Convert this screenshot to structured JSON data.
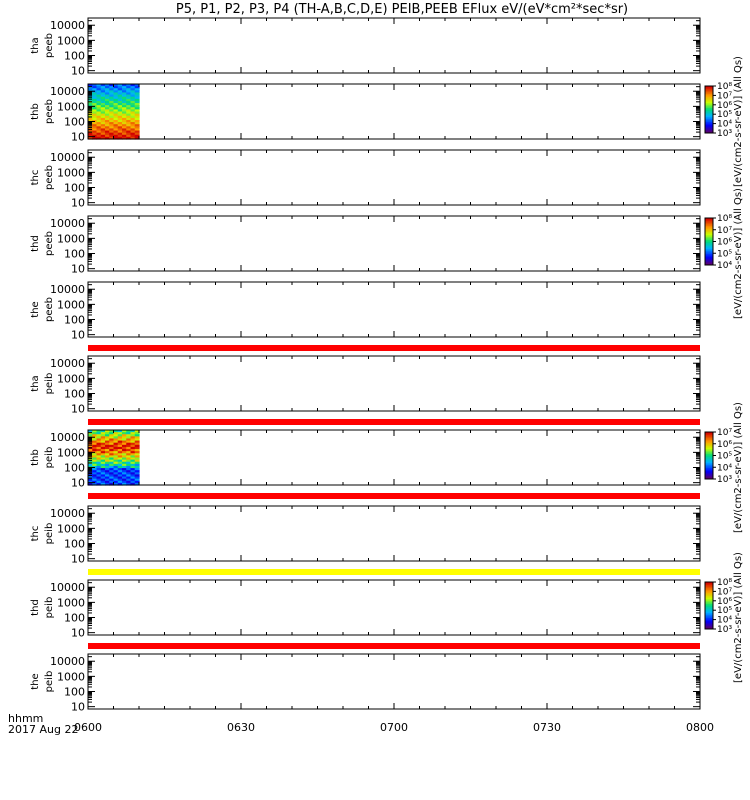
{
  "title": "P5, P1, P2, P3, P4 (TH-A,B,C,D,E) PEIB,PEEB EFlux eV/(eV*cm²*sec*sr)",
  "x_axis": {
    "corner_top": "hhmm",
    "corner_bottom": "2017 Aug 22",
    "ticks": [
      "0600",
      "0630",
      "0700",
      "0730",
      "0800"
    ]
  },
  "colorbar_label": "[eV/(cm2-s-sr-eV)] (All Qs)",
  "chart_data": {
    "type": "heatmap",
    "x_range_minutes": [
      0,
      120
    ],
    "y_scale": "log",
    "y_range": [
      7,
      30000
    ],
    "y_ticks": [
      "10",
      "100",
      "1000",
      "10000"
    ],
    "panels": [
      {
        "probe": "tha",
        "product": "peeb",
        "has_data": false,
        "colorbar": false
      },
      {
        "probe": "thb",
        "product": "peeb",
        "has_data": true,
        "data_start_min": 0,
        "data_end_min": 10,
        "colorbar": true,
        "colorbar_ticks": [
          "10³",
          "10⁴",
          "10⁵",
          "10⁶",
          "10⁷",
          "10⁸"
        ],
        "bar_below": null
      },
      {
        "probe": "thc",
        "product": "peeb",
        "has_data": false,
        "colorbar": false
      },
      {
        "probe": "thd",
        "product": "peeb",
        "has_data": false,
        "colorbar": true,
        "colorbar_ticks": [
          "10⁴",
          "10⁵",
          "10⁶",
          "10⁷",
          "10⁸"
        ]
      },
      {
        "probe": "the",
        "product": "peeb",
        "has_data": false,
        "colorbar": false,
        "bar_below": "red"
      },
      {
        "probe": "tha",
        "product": "peib",
        "has_data": false,
        "colorbar": false,
        "bar_below": "red"
      },
      {
        "probe": "thb",
        "product": "peib",
        "has_data": true,
        "data_start_min": 0,
        "data_end_min": 10,
        "colorbar": true,
        "colorbar_ticks": [
          "10³",
          "10⁴",
          "10⁵",
          "10⁶",
          "10⁷"
        ],
        "bar_below": "red"
      },
      {
        "probe": "thc",
        "product": "peib",
        "has_data": false,
        "colorbar": false,
        "bar_below": "yellow"
      },
      {
        "probe": "thd",
        "product": "peib",
        "has_data": false,
        "colorbar": true,
        "colorbar_ticks": [
          "10³",
          "10⁴",
          "10⁵",
          "10⁶",
          "10⁷",
          "10⁸"
        ],
        "bar_below": "red"
      },
      {
        "probe": "the",
        "product": "peib",
        "has_data": false,
        "colorbar": false
      }
    ]
  },
  "colors": {
    "red_bar": "#ff0000",
    "yellow_bar": "#ffff00"
  }
}
